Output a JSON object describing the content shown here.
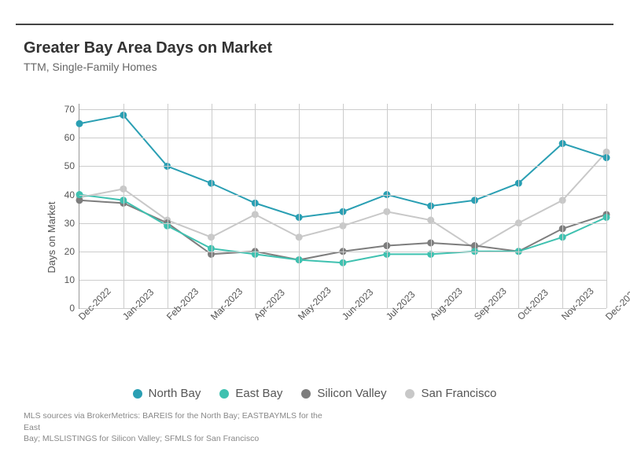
{
  "chart": {
    "type": "line",
    "title": "Greater Bay Area Days on Market",
    "subtitle": "TTM, Single-Family Homes",
    "yaxis_label": "Days on Market",
    "title_fontsize": 20,
    "subtitle_fontsize": 14,
    "label_fontsize": 13,
    "tick_fontsize": 12,
    "background_color": "#ffffff",
    "grid_color": "#cccccc",
    "axis_color": "#999999",
    "text_color": "#555555",
    "line_width": 2,
    "marker_style": "circle",
    "marker_radius": 4.5,
    "ylim": [
      0,
      72
    ],
    "yticks": [
      0,
      10,
      20,
      30,
      40,
      50,
      60,
      70
    ],
    "categories": [
      "Dec-2022",
      "Jan-2023",
      "Feb-2023",
      "Mar-2023",
      "Apr-2023",
      "May-2023",
      "Jun-2023",
      "Jul-2023",
      "Aug-2023",
      "Sep-2023",
      "Oct-2023",
      "Nov-2023",
      "Dec-2023"
    ],
    "series": [
      {
        "name": "North Bay",
        "color": "#2a9fb3",
        "values": [
          65,
          68,
          50,
          44,
          37,
          32,
          34,
          40,
          36,
          38,
          44,
          58,
          53
        ]
      },
      {
        "name": "East Bay",
        "color": "#3fc1b0",
        "values": [
          40,
          38,
          29,
          21,
          19,
          17,
          16,
          19,
          19,
          20,
          20,
          25,
          32
        ]
      },
      {
        "name": "Silicon Valley",
        "color": "#7d7d7d",
        "values": [
          38,
          37,
          30,
          19,
          20,
          17,
          20,
          22,
          23,
          22,
          20,
          28,
          33
        ]
      },
      {
        "name": "San Francisco",
        "color": "#c8c8c8",
        "values": [
          39,
          42,
          31,
          25,
          33,
          25,
          29,
          34,
          31,
          21,
          30,
          38,
          55
        ]
      }
    ],
    "legend_position": "bottom",
    "footnote_line1": "MLS sources via BrokerMetrics: BAREIS for the North Bay; EASTBAYMLS for the East",
    "footnote_line2": "Bay; MLSLISTINGS for Silicon Valley; SFMLS for San Francisco"
  }
}
